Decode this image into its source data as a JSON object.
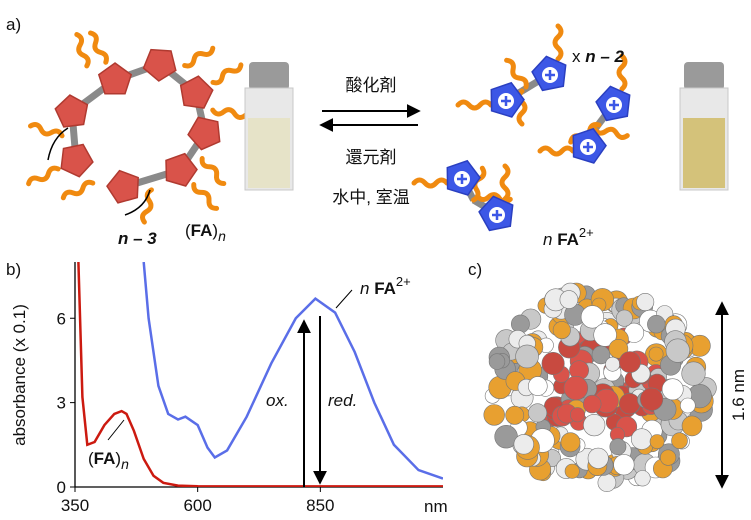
{
  "panel_a": {
    "label": "a)",
    "repeat_label": [
      "x ",
      "n – 2"
    ],
    "ring_label": "n – 3",
    "polymer_label": [
      "(",
      "FA",
      ")",
      "n"
    ],
    "oxidant": "酸化剤",
    "reductant": "還元剤",
    "conditions": "水中, 室温",
    "monomer_label": [
      "n ",
      "FA",
      "2+"
    ]
  },
  "chart_data": {
    "type": "line",
    "panel_label": "b)",
    "ylabel": "absorbance (x 0.1)",
    "x_unit": "nm",
    "xlim": [
      350,
      1100
    ],
    "ylim": [
      0,
      8
    ],
    "xticks": [
      350,
      600,
      850
    ],
    "yticks": [
      0,
      3,
      6
    ],
    "series": [
      {
        "color": "#cc1a10",
        "x": [
          357,
          365,
          375,
          390,
          410,
          430,
          445,
          455,
          470,
          490,
          510,
          530,
          560,
          600,
          700,
          800,
          900,
          1000,
          1100
        ],
        "values": [
          8.0,
          3.2,
          1.5,
          1.6,
          2.2,
          2.6,
          2.7,
          2.6,
          2.0,
          1.0,
          0.4,
          0.15,
          0.05,
          0.03,
          0.02,
          0.02,
          0.02,
          0.02,
          0.02
        ]
      },
      {
        "color": "#5a6ee8",
        "x": [
          490,
          500,
          520,
          540,
          560,
          575,
          600,
          620,
          635,
          660,
          700,
          750,
          800,
          840,
          880,
          920,
          960,
          1000,
          1050,
          1100
        ],
        "values": [
          8.0,
          6.0,
          3.6,
          2.6,
          2.4,
          2.5,
          2.2,
          1.4,
          1.05,
          1.3,
          2.5,
          4.4,
          6.0,
          6.7,
          6.2,
          4.8,
          3.0,
          1.5,
          0.6,
          0.3
        ]
      }
    ],
    "annotations": {
      "red_curve": [
        "(",
        "FA",
        ")",
        "n"
      ],
      "blue_curve": [
        "n ",
        "FA",
        "2+"
      ],
      "up_arrow": "ox.",
      "down_arrow": "red."
    }
  },
  "panel_c": {
    "label": "c)",
    "scale": "1.6 nm"
  }
}
